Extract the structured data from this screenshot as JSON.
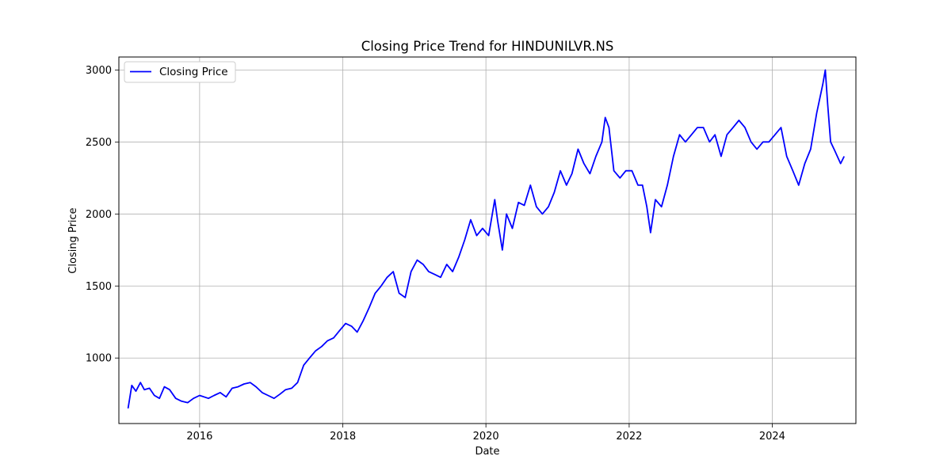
{
  "chart_data": {
    "type": "line",
    "title": "Closing Price Trend for HINDUNILVR.NS",
    "xlabel": "Date",
    "ylabel": "Closing Price",
    "xlim": [
      "2014-11-15",
      "2025-03-03"
    ],
    "ylim": [
      545,
      3090
    ],
    "x_ticks": [
      "2016-01-01",
      "2018-01-01",
      "2020-01-01",
      "2022-01-01",
      "2024-01-01"
    ],
    "x_tick_labels": [
      "2016",
      "2018",
      "2020",
      "2022",
      "2024"
    ],
    "y_ticks": [
      1000,
      1500,
      2000,
      2500,
      3000
    ],
    "y_tick_labels": [
      "1000",
      "1500",
      "2000",
      "2500",
      "3000"
    ],
    "grid": true,
    "legend_position": "upper-left",
    "color": "#0000ff",
    "series": [
      {
        "name": "Closing Price",
        "x": [
          "2015-01-01",
          "2015-01-20",
          "2015-02-10",
          "2015-03-05",
          "2015-03-25",
          "2015-04-20",
          "2015-05-15",
          "2015-06-10",
          "2015-07-05",
          "2015-08-01",
          "2015-09-01",
          "2015-10-01",
          "2015-11-01",
          "2015-12-01",
          "2016-01-01",
          "2016-02-15",
          "2016-03-15",
          "2016-04-15",
          "2016-05-15",
          "2016-06-15",
          "2016-07-15",
          "2016-08-15",
          "2016-09-15",
          "2016-10-15",
          "2016-11-15",
          "2016-12-15",
          "2017-01-15",
          "2017-02-15",
          "2017-03-15",
          "2017-04-15",
          "2017-05-15",
          "2017-06-15",
          "2017-07-15",
          "2017-08-15",
          "2017-09-15",
          "2017-10-15",
          "2017-11-15",
          "2017-12-15",
          "2018-01-15",
          "2018-02-15",
          "2018-03-15",
          "2018-04-15",
          "2018-05-15",
          "2018-06-15",
          "2018-07-15",
          "2018-08-15",
          "2018-09-15",
          "2018-10-15",
          "2018-11-15",
          "2018-12-15",
          "2019-01-15",
          "2019-02-15",
          "2019-03-15",
          "2019-04-15",
          "2019-05-15",
          "2019-06-15",
          "2019-07-15",
          "2019-08-15",
          "2019-09-15",
          "2019-10-15",
          "2019-11-15",
          "2019-12-15",
          "2020-01-15",
          "2020-02-15",
          "2020-03-01",
          "2020-03-25",
          "2020-04-15",
          "2020-05-15",
          "2020-06-15",
          "2020-07-15",
          "2020-08-15",
          "2020-09-15",
          "2020-10-15",
          "2020-11-15",
          "2020-12-15",
          "2021-01-15",
          "2021-02-15",
          "2021-03-15",
          "2021-04-15",
          "2021-05-15",
          "2021-06-15",
          "2021-07-15",
          "2021-08-15",
          "2021-09-01",
          "2021-09-20",
          "2021-10-15",
          "2021-11-15",
          "2021-12-15",
          "2022-01-15",
          "2022-02-15",
          "2022-03-10",
          "2022-04-01",
          "2022-04-20",
          "2022-05-15",
          "2022-06-15",
          "2022-07-15",
          "2022-08-15",
          "2022-09-15",
          "2022-10-15",
          "2022-11-15",
          "2022-12-15",
          "2023-01-15",
          "2023-02-15",
          "2023-03-15",
          "2023-04-15",
          "2023-05-15",
          "2023-06-15",
          "2023-07-15",
          "2023-08-15",
          "2023-09-15",
          "2023-10-15",
          "2023-11-15",
          "2023-12-15",
          "2024-01-15",
          "2024-02-15",
          "2024-03-15",
          "2024-04-15",
          "2024-05-15",
          "2024-06-15",
          "2024-07-15",
          "2024-08-15",
          "2024-09-15",
          "2024-09-28",
          "2024-10-10",
          "2024-10-25",
          "2024-11-15",
          "2024-12-15",
          "2025-01-02"
        ],
        "y": [
          650,
          810,
          770,
          830,
          780,
          790,
          740,
          720,
          800,
          780,
          720,
          700,
          690,
          720,
          740,
          720,
          740,
          760,
          730,
          790,
          800,
          820,
          830,
          800,
          760,
          740,
          720,
          750,
          780,
          790,
          830,
          950,
          1000,
          1050,
          1080,
          1120,
          1140,
          1190,
          1240,
          1220,
          1180,
          1260,
          1350,
          1450,
          1500,
          1560,
          1600,
          1450,
          1420,
          1600,
          1680,
          1650,
          1600,
          1580,
          1560,
          1650,
          1600,
          1700,
          1820,
          1960,
          1850,
          1900,
          1850,
          2100,
          1950,
          1750,
          2000,
          1900,
          2080,
          2060,
          2200,
          2050,
          2000,
          2050,
          2150,
          2300,
          2200,
          2280,
          2450,
          2350,
          2280,
          2400,
          2500,
          2670,
          2600,
          2300,
          2250,
          2300,
          2300,
          2200,
          2200,
          2050,
          1870,
          2100,
          2050,
          2200,
          2400,
          2550,
          2500,
          2550,
          2600,
          2600,
          2500,
          2550,
          2400,
          2550,
          2600,
          2650,
          2600,
          2500,
          2450,
          2500,
          2500,
          2550,
          2600,
          2400,
          2300,
          2200,
          2350,
          2450,
          2700,
          2900,
          3000,
          2760,
          2500,
          2440,
          2350,
          2400
        ]
      }
    ]
  }
}
